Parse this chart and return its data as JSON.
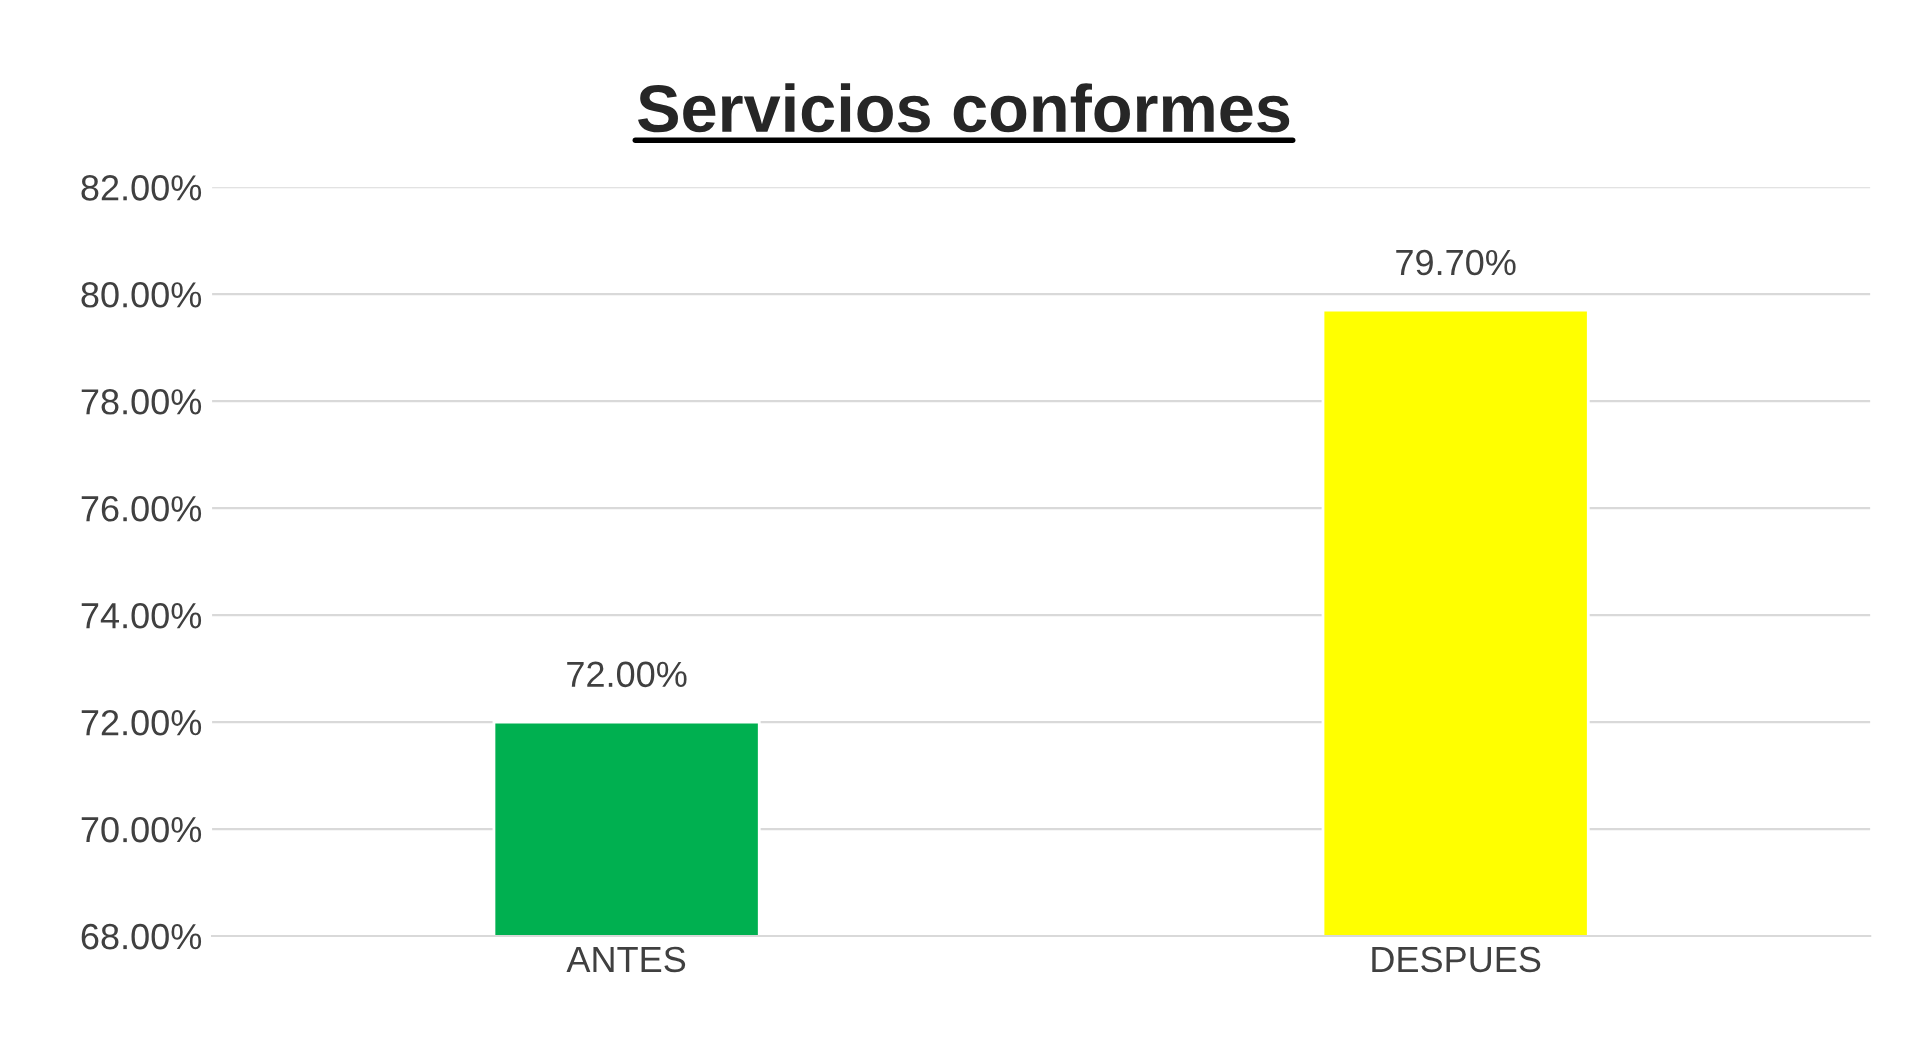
{
  "chart_data": {
    "type": "bar",
    "title": "Servicios conformes",
    "categories": [
      "ANTES",
      "DESPUES"
    ],
    "values": [
      72.0,
      79.7
    ],
    "colors": [
      "#00b050",
      "#ffff00"
    ],
    "value_labels": [
      "72.00%",
      "79.70%"
    ],
    "ylim": [
      68,
      82
    ],
    "yticks": [
      {
        "value": 68,
        "label": "68.00%"
      },
      {
        "value": 70,
        "label": "70.00%"
      },
      {
        "value": 72,
        "label": "72.00%"
      },
      {
        "value": 74,
        "label": "74.00%"
      },
      {
        "value": 76,
        "label": "76.00%"
      },
      {
        "value": 78,
        "label": "78.00%"
      },
      {
        "value": 80,
        "label": "80.00%"
      },
      {
        "value": 82,
        "label": "82.00%"
      }
    ],
    "grid": "y"
  }
}
